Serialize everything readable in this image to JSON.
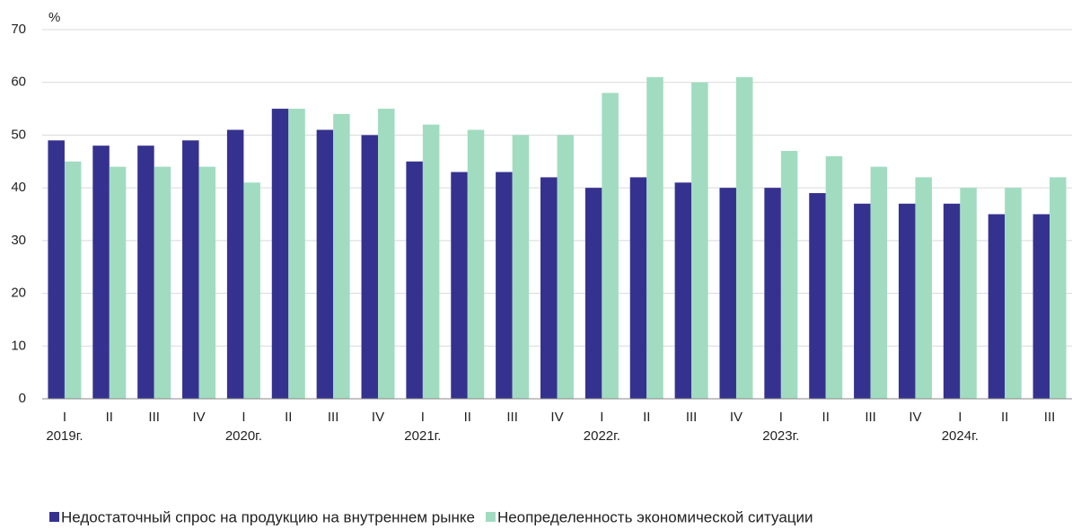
{
  "chart_data": {
    "type": "bar",
    "y_label": "%",
    "categories": [
      "I",
      "II",
      "III",
      "IV",
      "I",
      "II",
      "III",
      "IV",
      "I",
      "II",
      "III",
      "IV",
      "I",
      "II",
      "III",
      "IV",
      "I",
      "II",
      "III",
      "IV",
      "I",
      "II",
      "III"
    ],
    "year_labels": [
      "2019г.",
      null,
      null,
      null,
      "2020г.",
      null,
      null,
      null,
      "2021г.",
      null,
      null,
      null,
      "2022г.",
      null,
      null,
      null,
      "2023г.",
      null,
      null,
      null,
      "2024г.",
      null,
      null
    ],
    "series": [
      {
        "name": "Недостаточный спрос на продукцию на внутреннем рынке",
        "color": "#35328f",
        "values": [
          49,
          48,
          48,
          49,
          51,
          55,
          51,
          50,
          45,
          43,
          43,
          42,
          40,
          42,
          41,
          40,
          40,
          39,
          37,
          37,
          37,
          35,
          35
        ]
      },
      {
        "name": "Неопределенность экономической ситуации",
        "color": "#a1dcc1",
        "values": [
          45,
          44,
          44,
          44,
          41,
          55,
          54,
          55,
          52,
          51,
          50,
          50,
          58,
          61,
          60,
          61,
          47,
          46,
          44,
          42,
          40,
          40,
          42
        ]
      }
    ],
    "ylim": [
      0,
      70
    ],
    "yticks": [
      0,
      10,
      20,
      30,
      40,
      50,
      60,
      70
    ],
    "grid": true,
    "legend": "bottom"
  }
}
